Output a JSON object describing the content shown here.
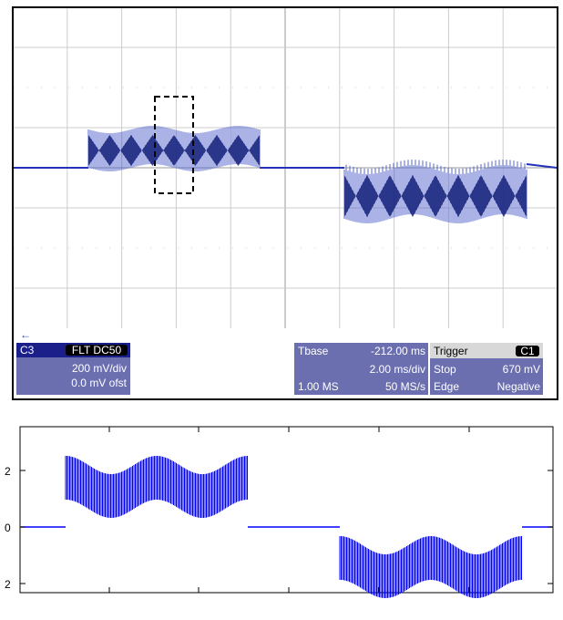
{
  "scope": {
    "channel": {
      "name": "C3",
      "coupling": "FLT DC50",
      "scale": "200 mV/div",
      "offset": "0.0 mV ofst"
    },
    "timebase": {
      "label": "Tbase",
      "delay": "-212.00 ms",
      "scale": "2.00 ms/div",
      "memory": "1.00 MS",
      "rate": "50 MS/s"
    },
    "trigger": {
      "label": "Trigger",
      "source": "C1",
      "mode": "Stop",
      "level": "670 mV",
      "type": "Edge",
      "slope": "Negative"
    }
  },
  "plot": {
    "y_tick_labels": [
      "2",
      "0",
      "2"
    ]
  }
}
